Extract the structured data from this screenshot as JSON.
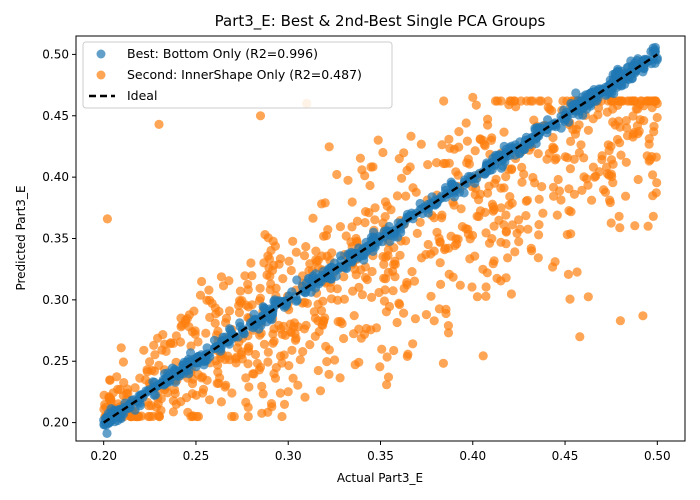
{
  "chart_data": {
    "type": "scatter",
    "title": "Part3_E: Best & 2nd-Best Single PCA Groups",
    "xlabel": "Actual Part3_E",
    "ylabel": "Predicted Part3_E",
    "xlim": [
      0.185,
      0.515
    ],
    "ylim": [
      0.185,
      0.515
    ],
    "xticks": [
      "0.20",
      "0.25",
      "0.30",
      "0.35",
      "0.40",
      "0.45",
      "0.50"
    ],
    "yticks": [
      "0.20",
      "0.25",
      "0.30",
      "0.35",
      "0.40",
      "0.45",
      "0.50"
    ],
    "legend_position": "top-left",
    "grid": false,
    "series": [
      {
        "name": "Best: Bottom Only (R2=0.996)",
        "color": "#1f77b4",
        "kind": "scatter",
        "sample_points": [
          [
            0.2,
            0.202
          ],
          [
            0.25,
            0.249
          ],
          [
            0.3,
            0.3
          ],
          [
            0.35,
            0.351
          ],
          [
            0.4,
            0.399
          ],
          [
            0.45,
            0.448
          ],
          [
            0.5,
            0.497
          ]
        ]
      },
      {
        "name": "Second: InnerShape Only (R2=0.487)",
        "color": "#ff7f0e",
        "kind": "scatter",
        "sample_points": [
          [
            0.202,
            0.366
          ],
          [
            0.23,
            0.443
          ],
          [
            0.285,
            0.45
          ],
          [
            0.31,
            0.46
          ],
          [
            0.4,
            0.465
          ],
          [
            0.458,
            0.27
          ],
          [
            0.48,
            0.283
          ],
          [
            0.5,
            0.46
          ],
          [
            0.495,
            0.36
          ]
        ]
      },
      {
        "name": "Ideal",
        "color": "#000000",
        "kind": "line",
        "points": [
          [
            0.2,
            0.2
          ],
          [
            0.5,
            0.5
          ]
        ]
      }
    ]
  }
}
